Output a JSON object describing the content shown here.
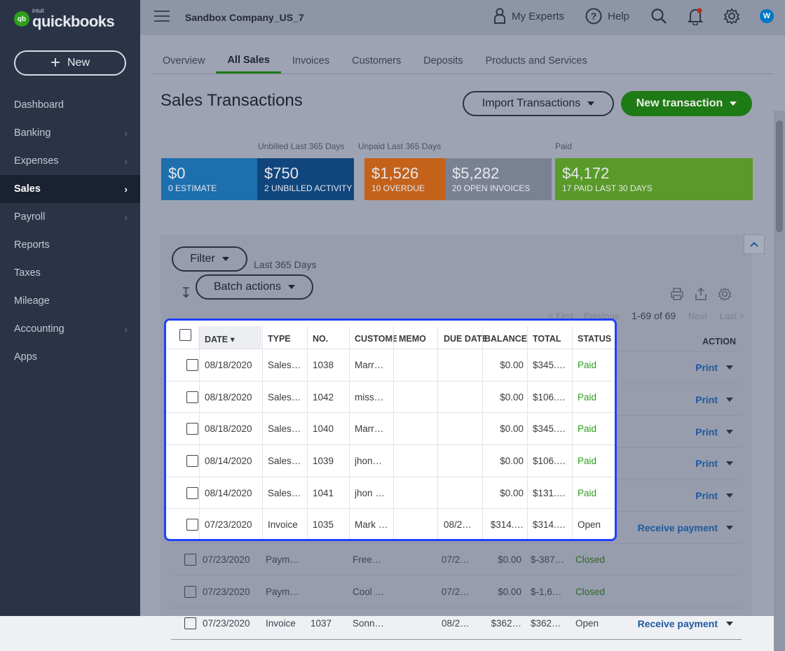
{
  "brand": {
    "badge": "qb",
    "intuit": "intuit",
    "name": "quickbooks"
  },
  "new_button": {
    "label": "New"
  },
  "nav": [
    {
      "label": "Dashboard",
      "chevron": false,
      "active": false
    },
    {
      "label": "Banking",
      "chevron": true,
      "active": false
    },
    {
      "label": "Expenses",
      "chevron": true,
      "active": false
    },
    {
      "label": "Sales",
      "chevron": true,
      "active": true
    },
    {
      "label": "Payroll",
      "chevron": true,
      "active": false
    },
    {
      "label": "Reports",
      "chevron": false,
      "active": false
    },
    {
      "label": "Taxes",
      "chevron": false,
      "active": false
    },
    {
      "label": "Mileage",
      "chevron": false,
      "active": false
    },
    {
      "label": "Accounting",
      "chevron": true,
      "active": false
    },
    {
      "label": "Apps",
      "chevron": false,
      "active": false
    }
  ],
  "topbar": {
    "company": "Sandbox Company_US_7",
    "experts": "My Experts",
    "help": "Help",
    "avatar": "W"
  },
  "tabs": [
    "Overview",
    "All Sales",
    "Invoices",
    "Customers",
    "Deposits",
    "Products and Services"
  ],
  "active_tab": "All Sales",
  "page": {
    "title": "Sales Transactions",
    "import_btn": "Import Transactions",
    "new_txn_btn": "New transaction"
  },
  "money_bar": {
    "labels": {
      "unbilled": "Unbilled Last 365 Days",
      "unpaid": "Unpaid Last 365 Days",
      "paid": "Paid"
    },
    "tiles": [
      {
        "amount": "$0",
        "sub": "0 ESTIMATE",
        "color": "#1d6fae"
      },
      {
        "amount": "$750",
        "sub": "2 UNBILLED ACTIVITY",
        "color": "#11467d"
      },
      {
        "amount": "$1,526",
        "sub": "10 OVERDUE",
        "color": "#c4621a"
      },
      {
        "amount": "$5,282",
        "sub": "20 OPEN INVOICES",
        "color": "#7a8193"
      },
      {
        "amount": "$4,172",
        "sub": "17 PAID LAST 30 DAYS",
        "color": "#5a9a2a"
      }
    ]
  },
  "toolbar": {
    "filter": "Filter",
    "range": "Last 365 Days",
    "batch": "Batch actions"
  },
  "pager": {
    "first": "< First",
    "previous": "Previous",
    "range": "1-69 of 69",
    "next": "Next",
    "last": "Last >"
  },
  "columns": [
    "DATE",
    "TYPE",
    "NO.",
    "CUSTOMER",
    "MEMO",
    "DUE DATE",
    "BALANCE",
    "TOTAL",
    "STATUS",
    "ACTION"
  ],
  "rows": [
    {
      "date": "08/18/2020",
      "type": "Sales…",
      "no": "1038",
      "customer": "Marr…",
      "due": "",
      "balance": "$0.00",
      "total": "$345.…",
      "status": "Paid",
      "action": "Print"
    },
    {
      "date": "08/18/2020",
      "type": "Sales…",
      "no": "1042",
      "customer": "miss…",
      "due": "",
      "balance": "$0.00",
      "total": "$106.…",
      "status": "Paid",
      "action": "Print"
    },
    {
      "date": "08/18/2020",
      "type": "Sales…",
      "no": "1040",
      "customer": "Marr…",
      "due": "",
      "balance": "$0.00",
      "total": "$345.…",
      "status": "Paid",
      "action": "Print"
    },
    {
      "date": "08/14/2020",
      "type": "Sales…",
      "no": "1039",
      "customer": "jhon…",
      "due": "",
      "balance": "$0.00",
      "total": "$106.…",
      "status": "Paid",
      "action": "Print"
    },
    {
      "date": "08/14/2020",
      "type": "Sales…",
      "no": "1041",
      "customer": "jhon …",
      "due": "",
      "balance": "$0.00",
      "total": "$131.…",
      "status": "Paid",
      "action": "Print"
    },
    {
      "date": "07/23/2020",
      "type": "Invoice",
      "no": "1035",
      "customer": "Mark …",
      "due": "08/2…",
      "balance": "$314.…",
      "total": "$314.…",
      "status": "Open",
      "action": "Receive payment"
    },
    {
      "date": "07/23/2020",
      "type": "Paym…",
      "no": "",
      "customer": "Free…",
      "due": "07/2…",
      "balance": "$0.00",
      "total": "$-387…",
      "status": "Closed",
      "action": ""
    },
    {
      "date": "07/23/2020",
      "type": "Paym…",
      "no": "",
      "customer": "Cool …",
      "due": "07/2…",
      "balance": "$0.00",
      "total": "$-1,6…",
      "status": "Closed",
      "action": ""
    },
    {
      "date": "07/23/2020",
      "type": "Invoice",
      "no": "1037",
      "customer": "Sonn…",
      "due": "08/2…",
      "balance": "$362…",
      "total": "$362…",
      "status": "Open",
      "action": "Receive payment"
    }
  ]
}
